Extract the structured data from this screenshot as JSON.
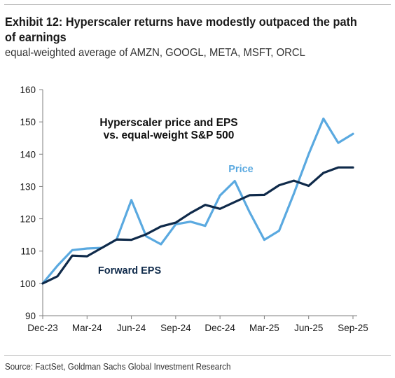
{
  "header": {
    "title": "Exhibit 12: Hyperscaler returns have modestly outpaced the path of earnings",
    "subtitle": "equal-weighted average of AMZN, GOOGL, META, MSFT, ORCL"
  },
  "footer": {
    "source": "Source: FactSet, Goldman Sachs Global Investment Research"
  },
  "chart_data": {
    "type": "line",
    "title": "Hyperscaler price and EPS\nvs. equal-weight S&P 500",
    "title_lines": [
      "Hyperscaler price and EPS",
      "vs. equal-weight S&P 500"
    ],
    "xlabel": "",
    "ylabel": "",
    "x_tick_labels": [
      "Dec-23",
      "Mar-24",
      "Jun-24",
      "Sep-24",
      "Dec-24",
      "Mar-25",
      "Jun-25",
      "Sep-25"
    ],
    "y_ticks": [
      90,
      100,
      110,
      120,
      130,
      140,
      150,
      160
    ],
    "ylim": [
      90,
      160
    ],
    "x": [
      "Dec-23",
      "Jan-24",
      "Feb-24",
      "Mar-24",
      "Apr-24",
      "May-24",
      "Jun-24",
      "Jul-24",
      "Aug-24",
      "Sep-24",
      "Oct-24",
      "Nov-24",
      "Dec-24",
      "Jan-25",
      "Feb-25",
      "Mar-25",
      "Apr-25",
      "May-25",
      "Jun-25",
      "Jul-25",
      "Aug-25",
      "Sep-25"
    ],
    "grid": false,
    "series": [
      {
        "name": "Price",
        "color": "#5aa9e0",
        "values": [
          100,
          105.5,
          110.3,
          110.8,
          111.0,
          113.6,
          125.8,
          114.6,
          112.1,
          118.3,
          119.1,
          117.8,
          127.2,
          131.7,
          122.1,
          113.5,
          116.3,
          127.8,
          140.0,
          151.0,
          143.5,
          146.3
        ]
      },
      {
        "name": "Forward EPS",
        "color": "#0f2a4a",
        "values": [
          100,
          102.2,
          108.6,
          108.4,
          111.0,
          113.6,
          113.5,
          115.2,
          117.6,
          118.8,
          121.8,
          124.3,
          123.1,
          125.2,
          127.3,
          127.4,
          130.4,
          131.8,
          130.2,
          134.2,
          135.9,
          135.9
        ]
      }
    ]
  }
}
